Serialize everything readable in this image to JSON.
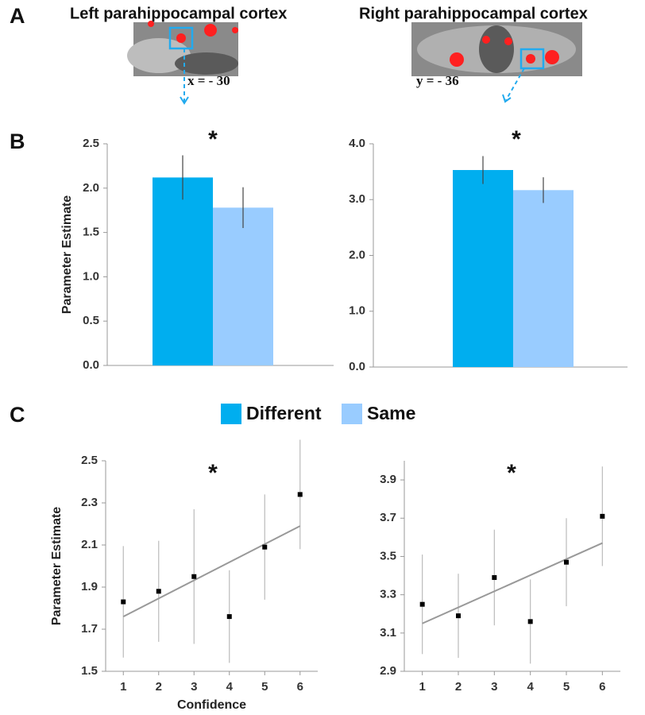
{
  "figure": {
    "panels": [
      "A",
      "B",
      "C"
    ],
    "brain_images": [
      {
        "title": "Left parahippocampal cortex",
        "coordinate": "x = - 30"
      },
      {
        "title": "Right parahippocampal cortex",
        "coordinate": "y = - 36"
      }
    ]
  },
  "chart_data": [
    {
      "type": "bar",
      "ylabel": "Parameter Estimate",
      "annotation": "*",
      "categories": [
        null
      ],
      "series": [
        {
          "name": "Different",
          "color": "#00aeef",
          "values": [
            2.12
          ],
          "errors": [
            0.25
          ]
        },
        {
          "name": "Same",
          "color": "#99ccff",
          "values": [
            1.78
          ],
          "errors": [
            0.23
          ]
        }
      ],
      "ylim": [
        0,
        2.5
      ],
      "yticks": [
        {
          "value": 0,
          "label": "0.0"
        },
        0.5,
        {
          "value": 1,
          "label": "1.0"
        },
        1.5,
        {
          "value": 2,
          "label": "2.0"
        },
        2.5
      ]
    },
    {
      "type": "bar",
      "annotation": "*",
      "categories": [
        null
      ],
      "series": [
        {
          "name": "Different",
          "color": "#00aeef",
          "values": [
            3.53
          ],
          "errors": [
            0.25
          ]
        },
        {
          "name": "Same",
          "color": "#99ccff",
          "values": [
            3.17
          ],
          "errors": [
            0.23
          ]
        }
      ],
      "ylim": [
        0,
        4
      ],
      "yticks": [
        {
          "value": 0,
          "label": "0.0"
        },
        {
          "value": 1,
          "label": "1.0"
        },
        {
          "value": 2,
          "label": "2.0"
        },
        {
          "value": 3,
          "label": "3.0"
        },
        {
          "value": 4,
          "label": "4.0"
        }
      ]
    },
    {
      "type": "scatter",
      "ylabel": "Parameter Estimate",
      "xlabel": "Confidence",
      "annotation": "*",
      "x": [
        1,
        2,
        3,
        4,
        5,
        6
      ],
      "series": [
        {
          "color": "#000000",
          "values": [
            1.83,
            1.88,
            1.95,
            1.76,
            2.09,
            2.34
          ],
          "errors": [
            0.265,
            0.24,
            0.32,
            0.22,
            0.25,
            0.26
          ]
        }
      ],
      "trendline": {
        "color": "#999999",
        "x": [
          1,
          6
        ],
        "values": [
          1.76,
          2.19
        ]
      },
      "xlim": [
        0.5,
        6.5
      ],
      "xticks": [
        1,
        2,
        3,
        4,
        5,
        6
      ],
      "ylim": [
        1.5,
        2.5
      ],
      "yticks": [
        1.5,
        1.7,
        1.9,
        2.1,
        2.3,
        2.5
      ]
    },
    {
      "type": "scatter",
      "annotation": "*",
      "x": [
        1,
        2,
        3,
        4,
        5,
        6
      ],
      "series": [
        {
          "color": "#000000",
          "values": [
            3.25,
            3.19,
            3.39,
            3.16,
            3.47,
            3.71
          ],
          "errors": [
            0.26,
            0.22,
            0.25,
            0.22,
            0.23,
            0.26
          ]
        }
      ],
      "trendline": {
        "color": "#999999",
        "x": [
          1,
          6
        ],
        "values": [
          3.15,
          3.57
        ]
      },
      "xlim": [
        0.5,
        6.5
      ],
      "xticks": [
        1,
        2,
        3,
        4,
        5,
        6
      ],
      "ylim": [
        2.9,
        4.0
      ],
      "yticks": [
        2.9,
        3.1,
        3.3,
        3.5,
        3.7,
        3.9
      ]
    }
  ]
}
